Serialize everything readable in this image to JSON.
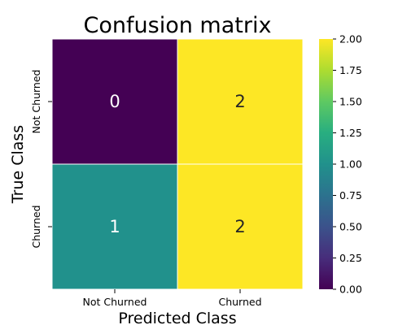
{
  "chart_data": {
    "type": "heatmap",
    "title": "Confusion matrix",
    "xlabel": "Predicted Class",
    "ylabel": "True Class",
    "x_categories": [
      "Not Churned",
      "Churned"
    ],
    "y_categories": [
      "Not Churned",
      "Churned"
    ],
    "values": [
      [
        0,
        2
      ],
      [
        1,
        2
      ]
    ],
    "colormap": "viridis",
    "colorbar": {
      "range": [
        0,
        2
      ],
      "ticks": [
        "0.00",
        "0.25",
        "0.50",
        "0.75",
        "1.00",
        "1.25",
        "1.50",
        "1.75",
        "2.00"
      ]
    },
    "annotations": true,
    "grid": false
  }
}
